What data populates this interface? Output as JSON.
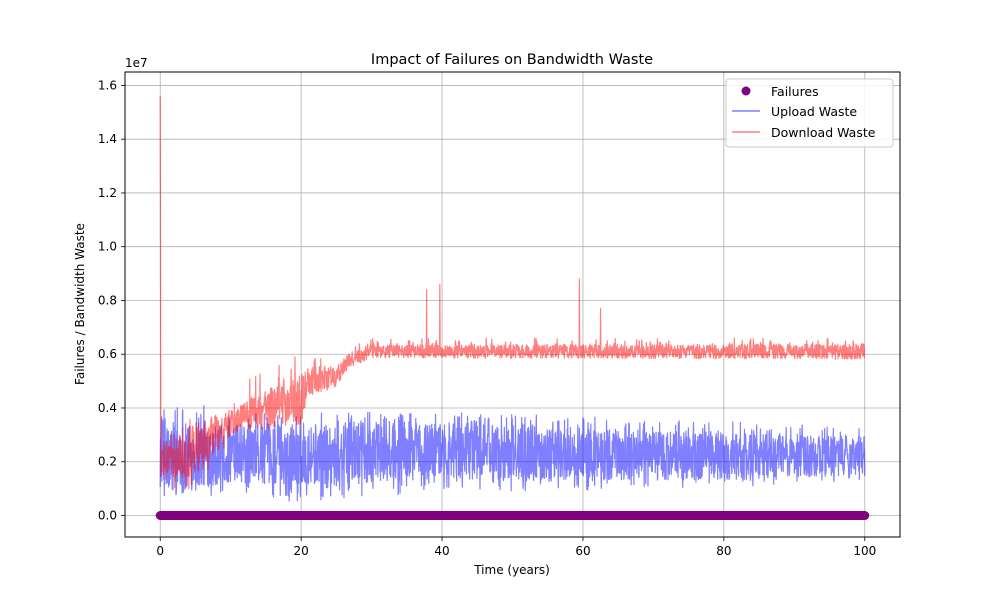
{
  "chart_data": {
    "type": "line",
    "title": "Impact of Failures on Bandwidth Waste",
    "xlabel": "Time (years)",
    "ylabel": "Failures / Bandwidth Waste",
    "y_offset_label": "1e7",
    "xlim": [
      -5,
      105
    ],
    "ylim": [
      -0.08,
      1.65
    ],
    "x_ticks": [
      0,
      20,
      40,
      60,
      80,
      100
    ],
    "x_tick_labels": [
      "0",
      "20",
      "40",
      "60",
      "80",
      "100"
    ],
    "y_ticks": [
      0.0,
      0.2,
      0.4,
      0.6,
      0.8,
      1.0,
      1.2,
      1.4,
      1.6
    ],
    "y_tick_labels": [
      "0.0",
      "0.2",
      "0.4",
      "0.6",
      "0.8",
      "1.0",
      "1.2",
      "1.4",
      "1.6"
    ],
    "grid": true,
    "legend_position": "top-right",
    "series": [
      {
        "name": "Failures",
        "kind": "scatter",
        "color": "#800080",
        "x_range": [
          0,
          100
        ],
        "value": 0.0
      },
      {
        "name": "Upload Waste",
        "kind": "line",
        "color": "#0000ff",
        "alpha": 0.5,
        "x_range": [
          0,
          100
        ],
        "envelope": [
          {
            "x": 0,
            "low": 0.1,
            "high": 0.47,
            "center": 0.25
          },
          {
            "x": 1,
            "low": 0.05,
            "high": 0.43,
            "center": 0.2
          },
          {
            "x": 5,
            "low": 0.07,
            "high": 0.42,
            "center": 0.22
          },
          {
            "x": 10,
            "low": 0.07,
            "high": 0.38,
            "center": 0.23
          },
          {
            "x": 20,
            "low": 0.05,
            "high": 0.38,
            "center": 0.23
          },
          {
            "x": 40,
            "low": 0.09,
            "high": 0.39,
            "center": 0.24
          },
          {
            "x": 60,
            "low": 0.09,
            "high": 0.37,
            "center": 0.23
          },
          {
            "x": 80,
            "low": 0.1,
            "high": 0.35,
            "center": 0.22
          },
          {
            "x": 100,
            "low": 0.13,
            "high": 0.33,
            "center": 0.22
          }
        ]
      },
      {
        "name": "Download Waste",
        "kind": "line",
        "color": "#ff0000",
        "alpha": 0.5,
        "x_range": [
          0,
          100
        ],
        "spike": {
          "x": 0,
          "value": 1.56
        },
        "envelope": [
          {
            "x": 0.5,
            "low": 0.08,
            "high": 0.3,
            "center": 0.2
          },
          {
            "x": 5,
            "low": 0.1,
            "high": 0.38,
            "center": 0.25
          },
          {
            "x": 10,
            "low": 0.28,
            "high": 0.42,
            "center": 0.34
          },
          {
            "x": 12,
            "low": 0.33,
            "high": 0.5,
            "center": 0.37
          },
          {
            "x": 20,
            "low": 0.35,
            "high": 0.62,
            "center": 0.43
          },
          {
            "x": 21,
            "low": 0.43,
            "high": 0.6,
            "center": 0.5
          },
          {
            "x": 25,
            "low": 0.48,
            "high": 0.58,
            "center": 0.52
          },
          {
            "x": 27,
            "low": 0.55,
            "high": 0.63,
            "center": 0.58
          },
          {
            "x": 30,
            "low": 0.59,
            "high": 0.66,
            "center": 0.61
          },
          {
            "x": 100,
            "low": 0.58,
            "high": 0.66,
            "center": 0.61
          }
        ],
        "peaks": [
          {
            "x": 37.8,
            "value": 0.84
          },
          {
            "x": 39.7,
            "value": 0.86
          },
          {
            "x": 59.5,
            "value": 0.88
          },
          {
            "x": 62.5,
            "value": 0.77
          }
        ]
      }
    ]
  }
}
